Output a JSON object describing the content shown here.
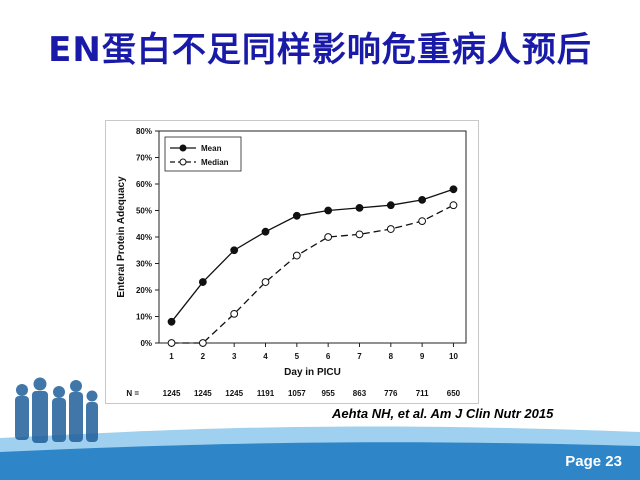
{
  "slide": {
    "title": "EN蛋白不足同样影响危重病人预后",
    "citation": "Aehta NH, et al. Am J Clin Nutr 2015",
    "page": "Page 23"
  },
  "colors": {
    "title": "#1a1aa8",
    "footer_band": "#2e86c8",
    "footer_light": "#9fd0ef"
  },
  "chart_data": {
    "type": "line",
    "xlabel": "Day in PICU",
    "ylabel": "Enteral Protein Adequacy",
    "x": [
      1,
      2,
      3,
      4,
      5,
      6,
      7,
      8,
      9,
      10
    ],
    "ylim": [
      0,
      80
    ],
    "yticks": [
      "0%",
      "10%",
      "20%",
      "30%",
      "40%",
      "50%",
      "60%",
      "70%",
      "80%"
    ],
    "legend_position": "top-left",
    "series": [
      {
        "name": "Mean",
        "marker": "filled-circle",
        "line": "solid",
        "values": [
          8,
          23,
          35,
          42,
          48,
          50,
          51,
          52,
          54,
          58
        ]
      },
      {
        "name": "Median",
        "marker": "open-circle",
        "line": "dashed",
        "values": [
          0,
          0,
          11,
          23,
          33,
          40,
          41,
          43,
          46,
          52
        ]
      }
    ],
    "n_label": "N =",
    "n_values": [
      "1245",
      "1245",
      "1245",
      "1191",
      "1057",
      "955",
      "863",
      "776",
      "711",
      "650"
    ]
  }
}
